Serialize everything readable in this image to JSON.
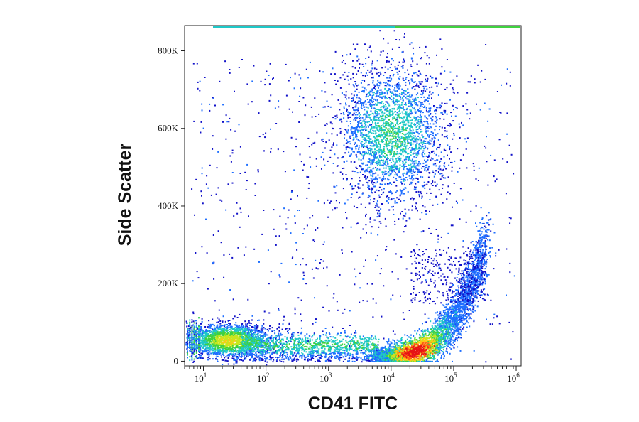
{
  "chart_data": {
    "type": "scatter",
    "subtype": "flow-cytometry-density-dot-plot",
    "xlabel": "CD41 FITC",
    "ylabel": "Side Scatter",
    "x_scale": "log",
    "xlim": [
      5,
      1200000
    ],
    "ylim": [
      -12000,
      865000
    ],
    "x_ticks": [
      {
        "value": 10,
        "base": "10",
        "exp": "1"
      },
      {
        "value": 100,
        "base": "10",
        "exp": "2"
      },
      {
        "value": 1000,
        "base": "10",
        "exp": "3"
      },
      {
        "value": 10000,
        "base": "10",
        "exp": "4"
      },
      {
        "value": 100000,
        "base": "10",
        "exp": "5"
      },
      {
        "value": 1000000,
        "base": "10",
        "exp": "6"
      }
    ],
    "y_ticks": [
      {
        "value": 0,
        "label": "0"
      },
      {
        "value": 200000,
        "label": "200K"
      },
      {
        "value": 400000,
        "label": "400K"
      },
      {
        "value": 600000,
        "label": "600K"
      },
      {
        "value": 800000,
        "label": "800K"
      }
    ],
    "grid": false,
    "legend": "none",
    "density_colors": [
      "#1010c8",
      "#1f6fff",
      "#1fc8c8",
      "#3fd23f",
      "#c8e61e",
      "#ffc814",
      "#ff6414",
      "#e61414"
    ],
    "populations": [
      {
        "x_median": 10000,
        "x_spread_log10": 0.45,
        "y_center": 590000,
        "y_spread": 95000,
        "density": "medium"
      },
      {
        "x_median": 25,
        "x_spread_log10": 0.35,
        "y_center": 55000,
        "y_spread": 22000,
        "density": "high"
      },
      {
        "x_median": 800,
        "x_spread_log10": 0.55,
        "y_center": 40000,
        "y_spread": 20000,
        "density": "low"
      },
      {
        "x_median": 30000,
        "x_spread_log10": 0.3,
        "y_center": 40000,
        "y_spread": 25000,
        "density": "very-high",
        "shape": "curved-rising-tail"
      }
    ]
  }
}
